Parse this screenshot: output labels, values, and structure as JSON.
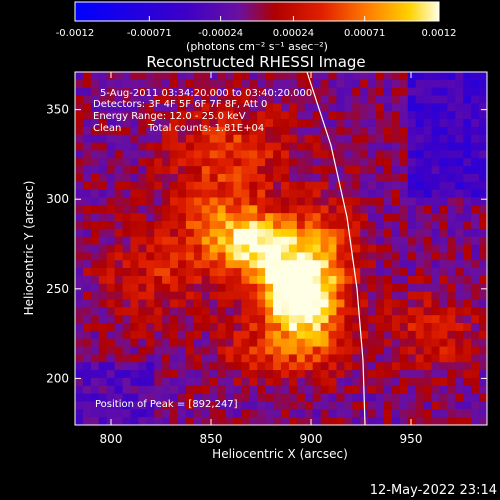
{
  "chart_data": {
    "type": "heatmap",
    "title": "Reconstructed RHESSI Image",
    "xlabel": "Heliocentric X (arcsec)",
    "ylabel": "Heliocentric Y (arcsec)",
    "xlim": [
      782,
      988
    ],
    "ylim": [
      174,
      371
    ],
    "x_ticks": [
      800,
      850,
      900,
      950
    ],
    "y_ticks": [
      200,
      250,
      300,
      350
    ],
    "colorbar": {
      "range": [
        -0.0012,
        0.0012
      ],
      "tick_values": [
        -0.0012,
        -0.00071,
        -0.00024,
        0.00024,
        0.00071,
        0.0012
      ],
      "tick_labels": [
        "-0.0012",
        "-0.00071",
        "-0.00024",
        "0.00024",
        "0.00071",
        "0.0012"
      ],
      "units": "(photons cm⁻² s⁻¹ asec⁻²)"
    },
    "annotations": {
      "time": "5-Aug-2011 03:34:20.000 to 03:40:20.000",
      "detectors": "Detectors: 3F 4F 5F 6F 7F 8F, Att 0",
      "energy": "Energy Range: 12.0 - 25.0 keV",
      "method": "Clean",
      "counts": "Total counts: 1.81E+04",
      "peak": "Position of Peak = [892,247]"
    },
    "peak": [
      892,
      247
    ],
    "limb_points": [
      [
        898,
        371
      ],
      [
        910,
        330
      ],
      [
        918,
        290
      ],
      [
        923,
        250
      ],
      [
        926,
        210
      ],
      [
        927,
        174
      ]
    ]
  },
  "timestamp": "12-May-2022 23:14"
}
